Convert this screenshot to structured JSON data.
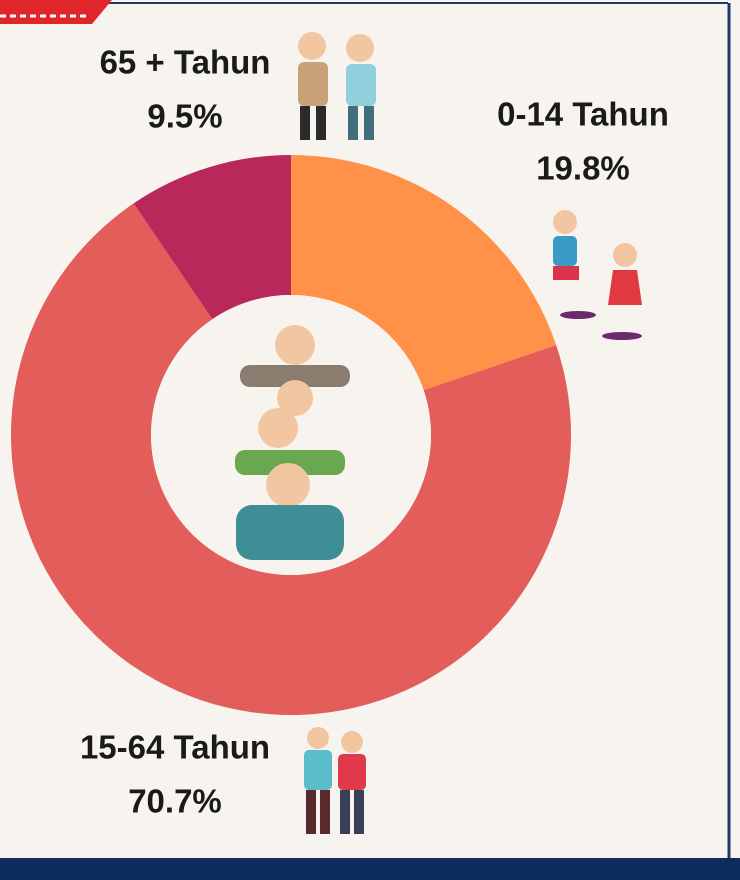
{
  "chart_data": {
    "type": "donut",
    "categories": [
      "0-14 Tahun",
      "15-64 Tahun",
      "65 + Tahun"
    ],
    "values": [
      19.8,
      70.7,
      9.5
    ],
    "value_labels": [
      "19.8%",
      "70.7%",
      "9.5%"
    ],
    "colors": [
      "#ff9148",
      "#e35d5a",
      "#b8285a"
    ]
  }
}
